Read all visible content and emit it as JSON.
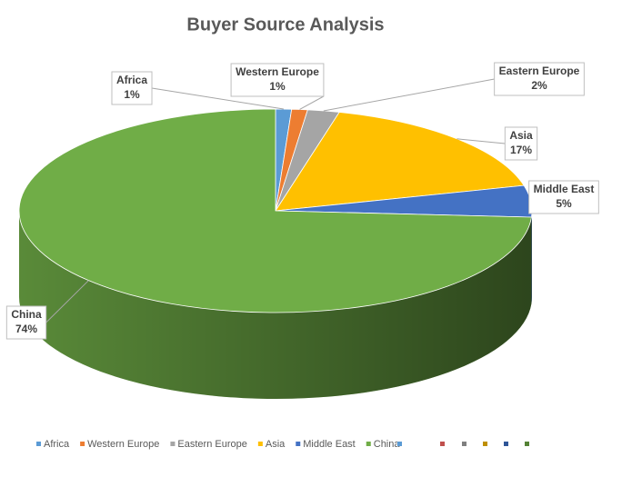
{
  "chart_data": {
    "type": "pie",
    "title": "Buyer Source Analysis",
    "categories": [
      "Africa",
      "Western Europe",
      "Eastern Europe",
      "Asia",
      "Middle East",
      "China"
    ],
    "values": [
      1,
      1,
      2,
      17,
      5,
      74
    ],
    "value_labels": [
      "1%",
      "1%",
      "2%",
      "17%",
      "5%",
      "74%"
    ],
    "colors": [
      "#5b9bd5",
      "#ed7d31",
      "#a5a5a5",
      "#ffc000",
      "#4472c4",
      "#70ad47"
    ]
  }
}
